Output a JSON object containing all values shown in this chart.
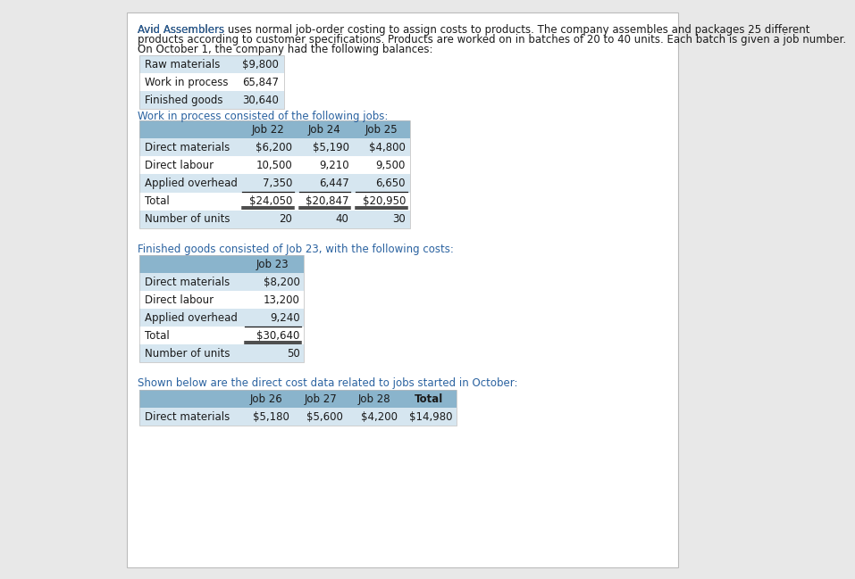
{
  "bg_color": "#e8e8e8",
  "panel_color": "#ffffff",
  "header_color": "#8ab4cc",
  "row_alt_color": "#d6e6f0",
  "row_white": "#ffffff",
  "blue_color": "#2a62a0",
  "black_color": "#1a1a1a",
  "border_color": "#bbbbbb",
  "intro_line1": "Avid Assemblers uses normal job-order costing to assign costs to products. The company assembles and packages 25 different",
  "intro_line2": "products according to customer specifications. Products are worked on in batches of 20 to 40 units. Each batch is given a job number.",
  "intro_line3": "On October 1, the company had the following balances:",
  "balances_labels": [
    "Raw materials",
    "Work in process",
    "Finished goods"
  ],
  "balances_values": [
    "$9,800",
    "65,847",
    "30,640"
  ],
  "wip_header": "Work in process consisted of the following jobs:",
  "wip_cols": [
    "",
    "Job 22",
    "Job 24",
    "Job 25"
  ],
  "wip_rows": [
    [
      "Direct materials",
      "$6,200",
      "$5,190",
      "$4,800"
    ],
    [
      "Direct labour",
      "10,500",
      "9,210",
      "9,500"
    ],
    [
      "Applied overhead",
      "7,350",
      "6,447",
      "6,650"
    ],
    [
      "Total",
      "$24,050",
      "$20,847",
      "$20,950"
    ],
    [
      "Number of units",
      "20",
      "40",
      "30"
    ]
  ],
  "wip_total_row_idx": 3,
  "fg_header": "Finished goods consisted of Job 23, with the following costs:",
  "fg_cols": [
    "",
    "Job 23"
  ],
  "fg_rows": [
    [
      "Direct materials",
      "$8,200"
    ],
    [
      "Direct labour",
      "13,200"
    ],
    [
      "Applied overhead",
      "9,240"
    ],
    [
      "Total",
      "$30,640"
    ],
    [
      "Number of units",
      "50"
    ]
  ],
  "fg_total_row_idx": 3,
  "oct_header": "Shown below are the direct cost data related to jobs started in October:",
  "oct_cols": [
    "",
    "Job 26",
    "Job 27",
    "Job 28",
    "Total"
  ],
  "oct_rows": [
    [
      "Direct materials",
      "$5,180",
      "$5,600",
      "$4,200",
      "$14,980"
    ]
  ]
}
